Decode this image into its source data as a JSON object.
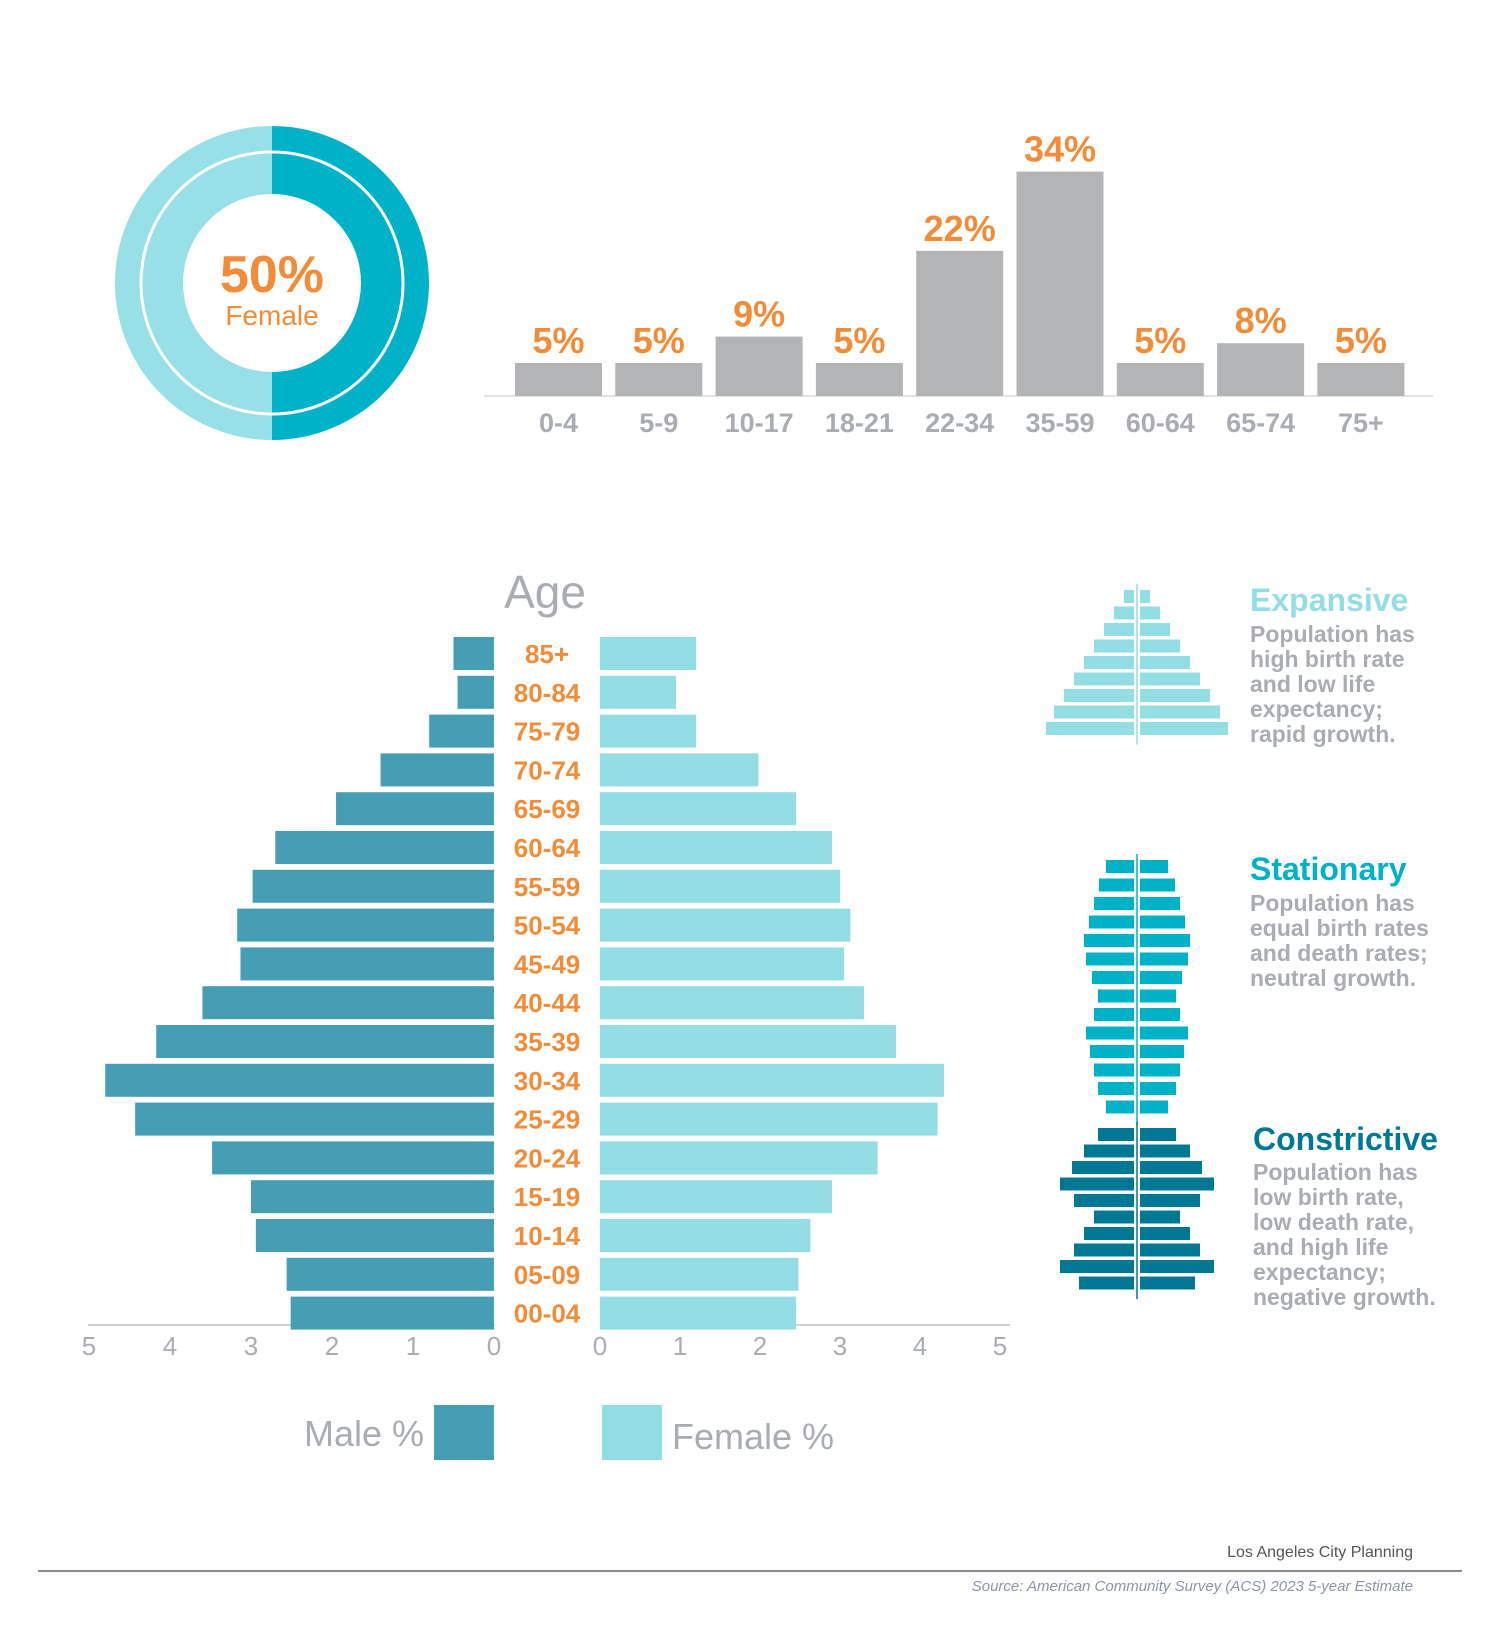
{
  "colors": {
    "orange": "#f28c38",
    "gray_bar": "#b3b4b6",
    "gray_text": "#a9adb1",
    "teal_dark": "#00b2c7",
    "teal_light": "#98e0e8",
    "male": "#459eb3",
    "female": "#93dde5",
    "expansive": "#93dde5",
    "stationary": "#00b2c7",
    "constrictive": "#007893"
  },
  "chart_data": [
    {
      "type": "pie",
      "center_value": "50%",
      "center_label": "Female",
      "slices": [
        {
          "label": "Female",
          "value": 50
        },
        {
          "label": "Male",
          "value": 50
        }
      ]
    },
    {
      "type": "bar",
      "categories": [
        "0-4",
        "5-9",
        "10-17",
        "18-21",
        "22-34",
        "35-59",
        "60-64",
        "65-74",
        "75+"
      ],
      "values": [
        5,
        5,
        9,
        5,
        22,
        34,
        5,
        8,
        5
      ],
      "value_labels": [
        "5%",
        "5%",
        "9%",
        "5%",
        "22%",
        "34%",
        "5%",
        "8%",
        "5%"
      ]
    },
    {
      "type": "bar",
      "subtype": "population-pyramid",
      "title": "Age",
      "categories": [
        "85+",
        "80-84",
        "75-79",
        "70-74",
        "65-69",
        "60-64",
        "55-59",
        "50-54",
        "45-49",
        "40-44",
        "35-39",
        "30-34",
        "25-29",
        "20-24",
        "15-19",
        "10-14",
        "05-09",
        "00-04"
      ],
      "series": [
        {
          "name": "Male %",
          "values": [
            0.5,
            0.45,
            0.8,
            1.4,
            1.95,
            2.7,
            2.98,
            3.17,
            3.13,
            3.6,
            4.17,
            4.8,
            4.43,
            3.48,
            3.0,
            2.94,
            2.56,
            2.51
          ]
        },
        {
          "name": "Female %",
          "values": [
            1.2,
            0.95,
            1.2,
            1.98,
            2.45,
            2.9,
            3.0,
            3.13,
            3.05,
            3.3,
            3.7,
            4.3,
            4.22,
            3.47,
            2.9,
            2.63,
            2.48,
            2.45
          ]
        }
      ],
      "xlim": [
        0,
        5
      ],
      "x_ticks_left": [
        "5",
        "4",
        "3",
        "2",
        "1",
        "0"
      ],
      "x_ticks_right": [
        "0",
        "1",
        "2",
        "3",
        "4",
        "5"
      ]
    }
  ],
  "legend": {
    "male_label": "Male %",
    "female_label": "Female %"
  },
  "pyramid_types": [
    {
      "title": "Expansive",
      "lines": [
        "Population has",
        "high birth rate",
        "and low life",
        "expectancy;",
        "rapid growth."
      ]
    },
    {
      "title": "Stationary",
      "lines": [
        "Population has",
        "equal birth rates",
        "and death rates;",
        "neutral growth."
      ]
    },
    {
      "title": "Constrictive",
      "lines": [
        "Population has",
        "low birth rate,",
        "low death rate,",
        "and high life",
        "expectancy;",
        "negative growth."
      ]
    }
  ],
  "footer": {
    "org": "Los Angeles City Planning",
    "source": "Source: American Community Survey (ACS) 2023 5-year Estimate"
  }
}
